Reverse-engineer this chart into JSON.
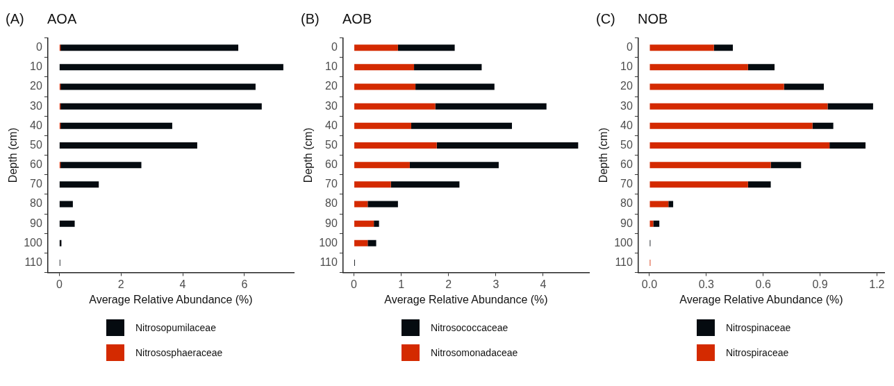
{
  "chart_data": [
    {
      "type": "bar",
      "orientation": "horizontal",
      "stacked": true,
      "title": "AOA",
      "annotations": [
        "(A)"
      ],
      "xlabel": "Average Relative Abundance (%)",
      "ylabel": "Depth (cm)",
      "categories": [
        "0",
        "10",
        "20",
        "30",
        "40",
        "50",
        "60",
        "70",
        "80",
        "90",
        "100",
        "110"
      ],
      "series": [
        {
          "name": "Nitrososphaeraceae",
          "color": "#d42a00",
          "values": [
            0.04,
            0,
            0.04,
            0.04,
            0.04,
            0,
            0.04,
            0,
            0,
            0,
            0,
            0
          ]
        },
        {
          "name": "Nitrosopumilaceae",
          "color": "#050b10",
          "values": [
            5.76,
            7.26,
            6.32,
            6.52,
            3.62,
            4.47,
            2.62,
            1.28,
            0.44,
            0.5,
            0.07,
            0.03
          ]
        }
      ],
      "xlim": [
        -0.37,
        7.6
      ],
      "xticks": [
        0,
        2,
        4,
        6
      ],
      "grid": false,
      "legend": "bottom"
    },
    {
      "type": "bar",
      "orientation": "horizontal",
      "stacked": true,
      "title": "AOB",
      "annotations": [
        "(B)"
      ],
      "xlabel": "Average Relative Abundance (%)",
      "ylabel": "Depth (cm)",
      "categories": [
        "0",
        "10",
        "20",
        "30",
        "40",
        "50",
        "60",
        "70",
        "80",
        "90",
        "100",
        "110"
      ],
      "series": [
        {
          "name": "Nitrosomonadaceae",
          "color": "#d42a00",
          "values": [
            0.93,
            1.27,
            1.3,
            1.72,
            1.21,
            1.75,
            1.18,
            0.78,
            0.29,
            0.42,
            0.29,
            0
          ]
        },
        {
          "name": "Nitrosococcaceae",
          "color": "#050b10",
          "values": [
            1.2,
            1.43,
            1.67,
            2.35,
            2.13,
            2.99,
            1.88,
            1.45,
            0.64,
            0.11,
            0.18,
            0.02
          ]
        }
      ],
      "xlim": [
        -0.23,
        4.97
      ],
      "xticks": [
        0,
        1,
        2,
        3,
        4
      ],
      "grid": false,
      "legend": "bottom"
    },
    {
      "type": "bar",
      "orientation": "horizontal",
      "stacked": true,
      "title": "NOB",
      "annotations": [
        "(C)"
      ],
      "xlabel": "Average Relative Abundance (%)",
      "ylabel": "Depth (cm)",
      "categories": [
        "0",
        "10",
        "20",
        "30",
        "40",
        "50",
        "60",
        "70",
        "80",
        "90",
        "100",
        "110"
      ],
      "series": [
        {
          "name": "Nitrospiraceae",
          "color": "#d42a00",
          "values": [
            0.34,
            0.52,
            0.71,
            0.94,
            0.86,
            0.95,
            0.64,
            0.52,
            0.1,
            0.02,
            0,
            0.005
          ]
        },
        {
          "name": "Nitrospinaceae",
          "color": "#050b10",
          "values": [
            0.1,
            0.14,
            0.21,
            0.24,
            0.11,
            0.19,
            0.16,
            0.12,
            0.025,
            0.032,
            0.005,
            0
          ]
        }
      ],
      "xlim": [
        -0.059,
        1.239
      ],
      "xticks": [
        {
          "value": 0,
          "label": "0.0"
        },
        0.3,
        0.6,
        0.9,
        1.2
      ],
      "grid": false,
      "legend": "bottom"
    }
  ]
}
